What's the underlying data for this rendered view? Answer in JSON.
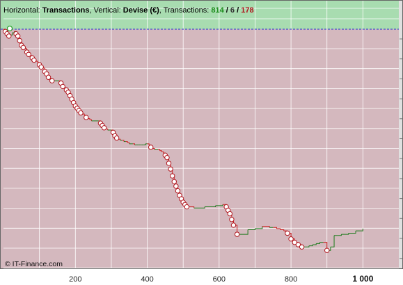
{
  "header": {
    "h_prefix": "Horizontal: ",
    "h_value": "Transactions",
    "v_prefix": ", Vertical: ",
    "v_value": "Devise (€)",
    "t_prefix": ", Transactions: ",
    "wins": "814",
    "sep1": " / ",
    "neutral": "6",
    "sep2": " / ",
    "losses": "178"
  },
  "copyright": "© IT-Finance.com",
  "colors": {
    "profit_zone": "#a8dcb0",
    "loss_zone": "#d4b8be",
    "grid": "#ffffff",
    "gain_line": "#1a7a1a",
    "loss_line": "#cc1f1f",
    "marker_stroke": "#b0141c",
    "marker_fill": "#ffffff",
    "start_marker": "#2aa02a",
    "baseline": "#2233cc",
    "wins_text": "#1a8c1a",
    "neutral_text": "#333333",
    "losses_text": "#b0141c"
  },
  "chart_data": {
    "type": "line",
    "xlim": [
      0,
      1100
    ],
    "x_ticks": [
      {
        "value": 200,
        "label": "200"
      },
      {
        "value": 400,
        "label": "400"
      },
      {
        "value": 600,
        "label": "600"
      },
      {
        "value": 800,
        "label": "800"
      },
      {
        "value": 1000,
        "label": "1 000"
      }
    ],
    "y_axis_labels": "none",
    "series": [
      {
        "x": [
          0,
          5,
          10,
          15,
          20,
          25,
          30,
          35,
          40,
          45,
          50,
          55,
          60,
          65,
          70,
          75,
          80,
          85,
          90,
          95,
          100,
          105,
          110,
          115,
          120,
          125,
          130,
          135,
          140,
          145,
          150,
          155,
          160,
          165,
          170,
          175,
          180,
          185,
          190,
          195,
          200,
          205,
          210,
          215,
          220,
          225,
          230,
          235,
          240,
          245,
          250,
          255,
          260,
          265,
          270,
          275,
          280,
          285,
          290,
          295,
          300,
          305,
          310,
          315,
          320,
          325,
          330,
          335,
          340,
          345,
          350,
          355,
          360,
          365,
          370,
          375,
          380,
          385,
          390,
          395,
          400,
          405,
          410,
          415,
          420,
          425,
          430,
          435,
          440,
          445,
          450,
          455,
          460,
          465,
          470,
          475,
          480,
          485,
          490,
          495,
          500,
          505,
          510,
          530,
          560,
          590,
          610,
          620,
          625,
          630,
          635,
          640,
          650,
          680,
          700,
          720,
          740,
          750,
          760,
          770,
          780,
          790,
          800,
          810,
          820,
          830,
          840,
          850,
          860,
          870,
          880,
          890,
          900,
          910,
          920,
          930,
          940,
          960,
          980,
          1000
        ],
        "values": [
          0,
          -2,
          -4,
          -6,
          -5,
          -3,
          -2,
          -4,
          -6,
          -10,
          -14,
          -16,
          -17,
          -20,
          -22,
          -23,
          -25,
          -27,
          -28,
          -29,
          -31,
          -33,
          -34,
          -37,
          -39,
          -42,
          -43,
          -45,
          -45,
          -45,
          -45,
          -45,
          -47,
          -50,
          -51,
          -53,
          -55,
          -58,
          -61,
          -64,
          -67,
          -69,
          -71,
          -73,
          -74,
          -75,
          -77,
          -78,
          -79,
          -80,
          -80,
          -80,
          -80,
          -80,
          -82,
          -84,
          -86,
          -87,
          -88,
          -88,
          -88,
          -90,
          -93,
          -95,
          -96,
          -97,
          -97,
          -98,
          -98,
          -99,
          -100,
          -100,
          -100,
          -101,
          -101,
          -101,
          -101,
          -101,
          -101,
          -100,
          -100,
          -101,
          -103,
          -104,
          -105,
          -105,
          -105,
          -106,
          -107,
          -108,
          -110,
          -112,
          -117,
          -122,
          -128,
          -133,
          -137,
          -141,
          -145,
          -148,
          -151,
          -153,
          -155,
          -156,
          -155,
          -154,
          -153,
          -155,
          -158,
          -161,
          -166,
          -171,
          -179,
          -175,
          -174,
          -172,
          -173,
          -173,
          -174,
          -175,
          -176,
          -178,
          -183,
          -186,
          -188,
          -190,
          -190,
          -189,
          -188,
          -187,
          -186,
          -186,
          -193,
          -190,
          -180,
          -180,
          -179,
          -178,
          -176,
          -174
        ]
      }
    ],
    "profit_line_value": 0,
    "grid": true
  }
}
